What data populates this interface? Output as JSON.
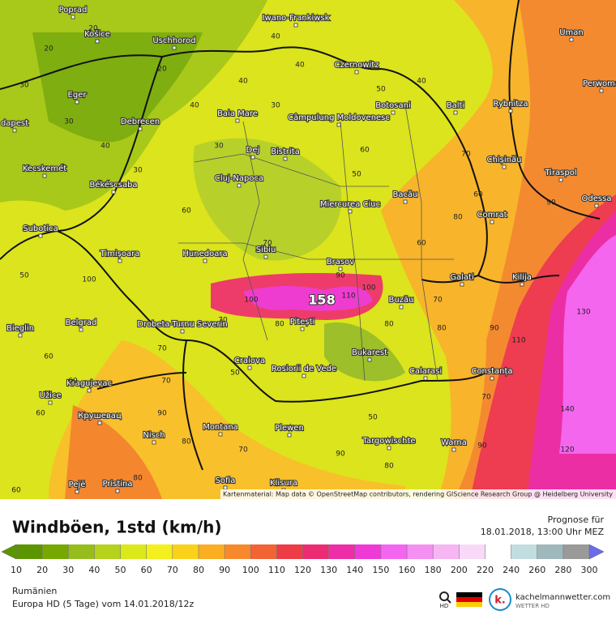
{
  "map": {
    "attribution": "Kartenmaterial: Map data © OpenStreetMap contributors, rendering GIScience Research Group @ Heidelberg University",
    "peak_label": "158",
    "cities": [
      "Poprad",
      "Košice",
      "Uschhorod",
      "Iwano-Frankiwsk",
      "Uman",
      "Czernowitz",
      "Perwoma",
      "dapest",
      "Eger",
      "Debrecen",
      "Baia Mare",
      "Câmpulung Moldovenesc",
      "Botosani",
      "Balti",
      "Rybnitza",
      "Kecskemét",
      "Dej",
      "Bistrita",
      "Chișinău",
      "Tiraspol",
      "Békéscsaba",
      "Cluj-Napoca",
      "Miercurea Ciuc",
      "Bacău",
      "Odessa",
      "Comrat",
      "Subotica",
      "Timișoara",
      "Hunedoara",
      "Sibiu",
      "Brasov",
      "Galati",
      "Kilija",
      "Buzău",
      "Bieglin",
      "Belgrad",
      "Drobeta-Turnu Severin",
      "Pitești",
      "Craiova",
      "Rosiorii de Vede",
      "Bukarest",
      "Calarasi",
      "Constanța",
      "Kragujevac",
      "Užice",
      "Крушевац",
      "Montana",
      "Plewen",
      "Nisch",
      "Targowischte",
      "Warna",
      "Sofia",
      "Pejë",
      "Pristina",
      "Klisura"
    ],
    "contour_labels": [
      "20",
      "20",
      "40",
      "30",
      "40",
      "40",
      "20",
      "30",
      "30",
      "30",
      "40",
      "50",
      "60",
      "70",
      "60",
      "80",
      "90",
      "100",
      "100",
      "110",
      "130",
      "140",
      "120",
      "110",
      "90",
      "80",
      "70",
      "60",
      "50",
      "40",
      "60",
      "70",
      "80",
      "70",
      "90",
      "80",
      "50",
      "40",
      "30",
      "60",
      "80",
      "100",
      "90",
      "70",
      "50",
      "60",
      "60",
      "70",
      "80",
      "70",
      "90",
      "90",
      "80",
      "70",
      "50",
      "60"
    ]
  },
  "legend": {
    "title": "Windböen, 1std (km/h)",
    "forecast_label": "Prognose für",
    "forecast_time": "18.01.2018, 13:00 Uhr MEZ",
    "scale": [
      {
        "value": 10,
        "color": "#5b9600"
      },
      {
        "value": 20,
        "color": "#76a800"
      },
      {
        "value": 30,
        "color": "#96bd1c"
      },
      {
        "value": 40,
        "color": "#b6d21c"
      },
      {
        "value": 50,
        "color": "#dbe81a"
      },
      {
        "value": 60,
        "color": "#f4f01e"
      },
      {
        "value": 70,
        "color": "#fbd21a"
      },
      {
        "value": 80,
        "color": "#fbae22"
      },
      {
        "value": 90,
        "color": "#f7892c"
      },
      {
        "value": 100,
        "color": "#f26434"
      },
      {
        "value": 110,
        "color": "#ee3c46"
      },
      {
        "value": 120,
        "color": "#ec2c72"
      },
      {
        "value": 130,
        "color": "#ee2ea8"
      },
      {
        "value": 140,
        "color": "#f03ad8"
      },
      {
        "value": 150,
        "color": "#f466f0"
      },
      {
        "value": 160,
        "color": "#f490f2"
      },
      {
        "value": 180,
        "color": "#f6b6f4"
      },
      {
        "value": 200,
        "color": "#f8daf8"
      },
      {
        "value": 220,
        "color": "#ffffff"
      },
      {
        "value": 240,
        "color": "#c2dde0"
      },
      {
        "value": 260,
        "color": "#9fb8bc"
      },
      {
        "value": 280,
        "color": "#9a9a9a"
      },
      {
        "value": 300,
        "color": "#6b6bf0"
      }
    ]
  },
  "footer": {
    "region": "Rumänien",
    "model": "Europa HD (5 Tage) vom 14.01.2018/12z",
    "hd": "HD",
    "brand": "kachelmannwetter.com",
    "brand_sub": "WETTER HD",
    "logo": "k."
  }
}
